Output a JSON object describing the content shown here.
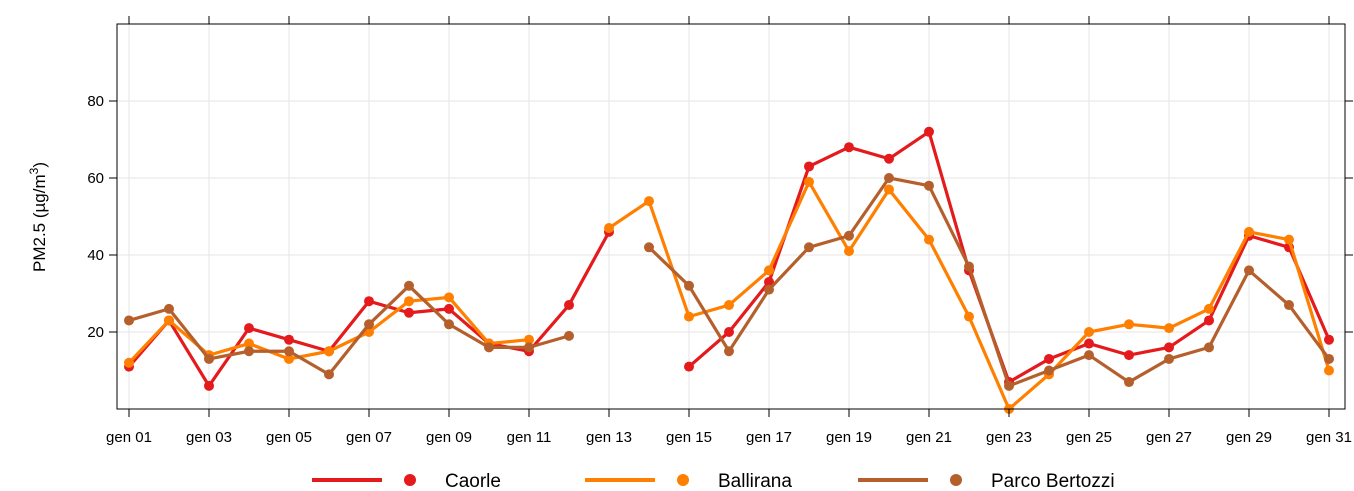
{
  "chart_data": {
    "type": "line",
    "title": "",
    "xlabel": "",
    "ylabel": "PM2.5 (µg/m³)",
    "ylabel_main": "PM2.5 (µg/m",
    "ylabel_sup": "3",
    "ylabel_close": ")",
    "x_ticks": [
      "gen 01",
      "gen 03",
      "gen 05",
      "gen 07",
      "gen 09",
      "gen 11",
      "gen 13",
      "gen 15",
      "gen 17",
      "gen 19",
      "gen 21",
      "gen 23",
      "gen 25",
      "gen 27",
      "gen 29",
      "gen 31"
    ],
    "y_ticks": [
      20,
      40,
      60,
      80
    ],
    "ylim": [
      0,
      100
    ],
    "xlim": [
      0.7,
      31.4
    ],
    "grid": true,
    "legend_position": "bottom",
    "x": [
      1,
      2,
      3,
      4,
      5,
      6,
      7,
      8,
      9,
      10,
      11,
      12,
      13,
      14,
      15,
      16,
      17,
      18,
      19,
      20,
      21,
      22,
      23,
      24,
      25,
      26,
      27,
      28,
      29,
      30,
      31
    ],
    "series": [
      {
        "name": "Caorle",
        "color": "#e41a1c",
        "values": [
          11,
          23,
          6,
          21,
          18,
          15,
          28,
          25,
          26,
          17,
          15,
          27,
          46,
          null,
          11,
          20,
          33,
          63,
          68,
          65,
          72,
          36,
          7,
          13,
          17,
          14,
          16,
          23,
          45,
          42,
          18
        ]
      },
      {
        "name": "Ballirana",
        "color": "#ff7f00",
        "values": [
          12,
          23,
          14,
          17,
          13,
          15,
          20,
          28,
          29,
          17,
          18,
          null,
          47,
          54,
          24,
          27,
          36,
          59,
          41,
          57,
          44,
          24,
          0,
          9,
          20,
          22,
          21,
          26,
          46,
          44,
          10
        ]
      },
      {
        "name": "Parco Bertozzi",
        "color": "#b5602c",
        "values": [
          23,
          26,
          13,
          15,
          15,
          9,
          22,
          32,
          22,
          16,
          16,
          19,
          null,
          42,
          32,
          15,
          31,
          42,
          45,
          60,
          58,
          37,
          6,
          10,
          14,
          7,
          13,
          16,
          36,
          27,
          13
        ]
      }
    ]
  }
}
